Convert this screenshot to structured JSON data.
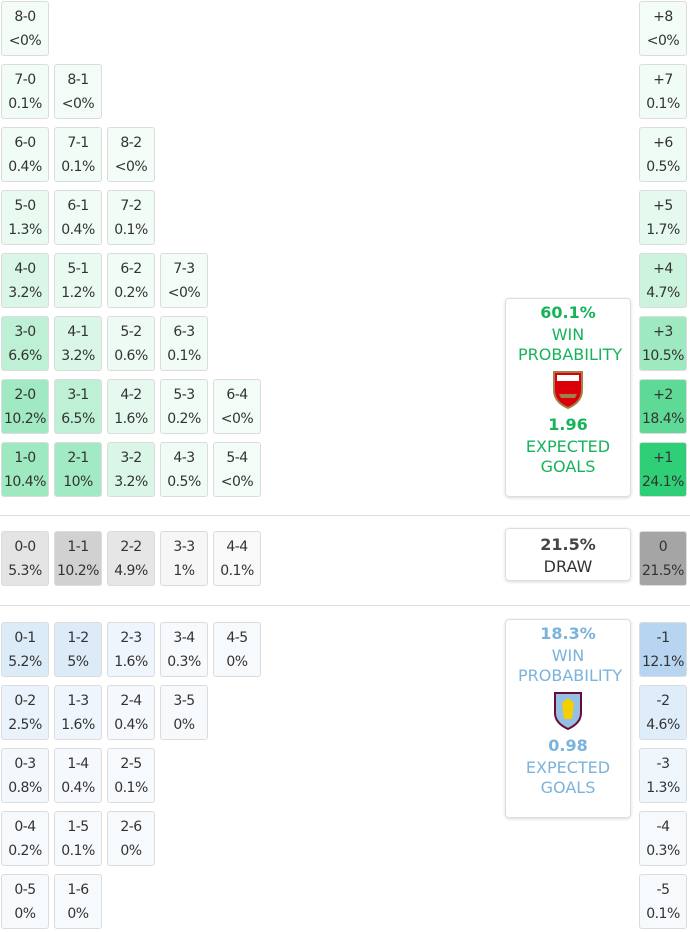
{
  "home": {
    "rows": [
      [
        [
          "8-0",
          "<0%"
        ]
      ],
      [
        [
          "7-0",
          "0.1%"
        ],
        [
          "8-1",
          "<0%"
        ]
      ],
      [
        [
          "6-0",
          "0.4%"
        ],
        [
          "7-1",
          "0.1%"
        ],
        [
          "8-2",
          "<0%"
        ]
      ],
      [
        [
          "5-0",
          "1.3%"
        ],
        [
          "6-1",
          "0.4%"
        ],
        [
          "7-2",
          "0.1%"
        ]
      ],
      [
        [
          "4-0",
          "3.2%"
        ],
        [
          "5-1",
          "1.2%"
        ],
        [
          "6-2",
          "0.2%"
        ],
        [
          "7-3",
          "<0%"
        ]
      ],
      [
        [
          "3-0",
          "6.6%"
        ],
        [
          "4-1",
          "3.2%"
        ],
        [
          "5-2",
          "0.6%"
        ],
        [
          "6-3",
          "0.1%"
        ]
      ],
      [
        [
          "2-0",
          "10.2%"
        ],
        [
          "3-1",
          "6.5%"
        ],
        [
          "4-2",
          "1.6%"
        ],
        [
          "5-3",
          "0.2%"
        ],
        [
          "6-4",
          "<0%"
        ]
      ],
      [
        [
          "1-0",
          "10.4%"
        ],
        [
          "2-1",
          "10%"
        ],
        [
          "3-2",
          "3.2%"
        ],
        [
          "4-3",
          "0.5%"
        ],
        [
          "5-4",
          "<0%"
        ]
      ]
    ],
    "margins": [
      [
        "+8",
        "<0%"
      ],
      [
        "+7",
        "0.1%"
      ],
      [
        "+6",
        "0.5%"
      ],
      [
        "+5",
        "1.7%"
      ],
      [
        "+4",
        "4.7%"
      ],
      [
        "+3",
        "10.5%"
      ],
      [
        "+2",
        "18.4%"
      ],
      [
        "+1",
        "24.1%"
      ]
    ],
    "win_probability": "60.1%",
    "win_label": "WIN PROBABILITY",
    "expected_goals": "1.96",
    "xg_label": "EXPECTED GOALS"
  },
  "draw": {
    "rows": [
      [
        [
          "0-0",
          "5.3%"
        ],
        [
          "1-1",
          "10.2%"
        ],
        [
          "2-2",
          "4.9%"
        ],
        [
          "3-3",
          "1%"
        ],
        [
          "4-4",
          "0.1%"
        ]
      ]
    ],
    "margins": [
      [
        "0",
        "21.5%"
      ]
    ],
    "probability": "21.5%",
    "label": "DRAW"
  },
  "away": {
    "rows": [
      [
        [
          "0-1",
          "5.2%"
        ],
        [
          "1-2",
          "5%"
        ],
        [
          "2-3",
          "1.6%"
        ],
        [
          "3-4",
          "0.3%"
        ],
        [
          "4-5",
          "0%"
        ]
      ],
      [
        [
          "0-2",
          "2.5%"
        ],
        [
          "1-3",
          "1.6%"
        ],
        [
          "2-4",
          "0.4%"
        ],
        [
          "3-5",
          "0%"
        ]
      ],
      [
        [
          "0-3",
          "0.8%"
        ],
        [
          "1-4",
          "0.4%"
        ],
        [
          "2-5",
          "0.1%"
        ]
      ],
      [
        [
          "0-4",
          "0.2%"
        ],
        [
          "1-5",
          "0.1%"
        ],
        [
          "2-6",
          "0%"
        ]
      ],
      [
        [
          "0-5",
          "0%"
        ],
        [
          "1-6",
          "0%"
        ]
      ]
    ],
    "margins": [
      [
        "-1",
        "12.1%"
      ],
      [
        "-2",
        "4.6%"
      ],
      [
        "-3",
        "1.3%"
      ],
      [
        "-4",
        "0.3%"
      ],
      [
        "-5",
        "0.1%"
      ]
    ],
    "win_probability": "18.3%",
    "win_label": "WIN PROBABILITY",
    "expected_goals": "0.98",
    "xg_label": "EXPECTED GOALS"
  }
}
